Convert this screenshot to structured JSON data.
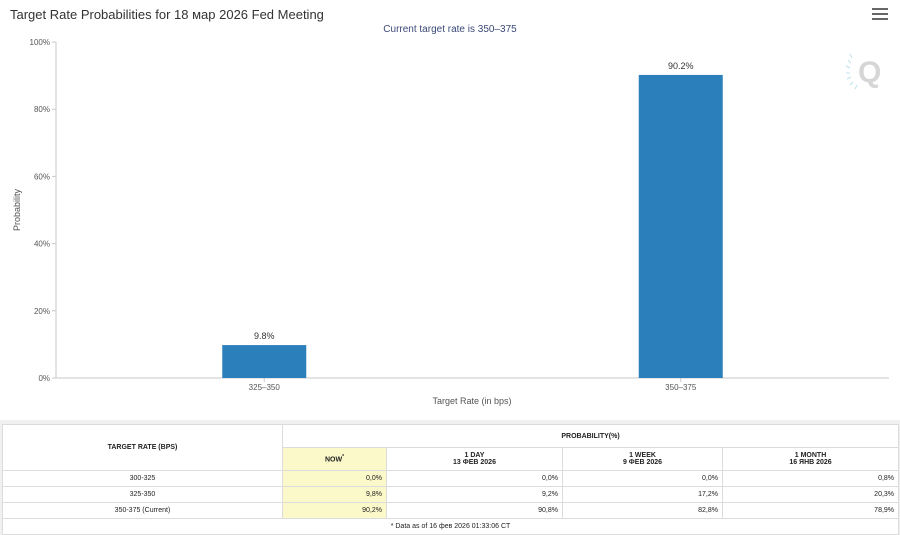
{
  "chart": {
    "title": "Target Rate Probabilities for 18 мар 2026 Fed Meeting",
    "subtitle": "Current target rate is 350–375",
    "menu_icon": "hamburger-menu-icon",
    "watermark_icon": "q-logo-icon"
  },
  "chart_data": {
    "type": "bar",
    "title": "Target Rate Probabilities for 18 мар 2026 Fed Meeting",
    "subtitle": "Current target rate is 350–375",
    "categories": [
      "325–350",
      "350–375"
    ],
    "values": [
      9.8,
      90.2
    ],
    "data_labels": [
      "9.8%",
      "90.2%"
    ],
    "xlabel": "Target Rate (in bps)",
    "ylabel": "Probability",
    "ylim": [
      0,
      100
    ],
    "yticks": [
      0,
      20,
      40,
      60,
      80,
      100
    ],
    "ytick_labels": [
      "0%",
      "20%",
      "40%",
      "60%",
      "80%",
      "100%"
    ],
    "grid": false,
    "bar_color": "#2b7fba"
  },
  "table": {
    "col_header": "TARGET RATE (BPS)",
    "group_header": "PROBABILITY(%)",
    "sub_headers": [
      {
        "line1": "NOW",
        "sup": "*",
        "line2": ""
      },
      {
        "line1": "1 DAY",
        "line2": "13 ФЕВ 2026"
      },
      {
        "line1": "1 WEEK",
        "line2": "9 ФЕВ 2026"
      },
      {
        "line1": "1 MONTH",
        "line2": "16 ЯНВ 2026"
      }
    ],
    "rows": [
      {
        "rate": "300-325",
        "now": "0,0%",
        "day": "0,0%",
        "week": "0,0%",
        "month": "0,8%"
      },
      {
        "rate": "325-350",
        "now": "9,8%",
        "day": "9,2%",
        "week": "17,2%",
        "month": "20,3%"
      },
      {
        "rate": "350-375 (Current)",
        "now": "90,2%",
        "day": "90,8%",
        "week": "82,8%",
        "month": "78,9%"
      }
    ],
    "footnote": "* Data as of 16 фев 2026 01:33:06 CT"
  }
}
